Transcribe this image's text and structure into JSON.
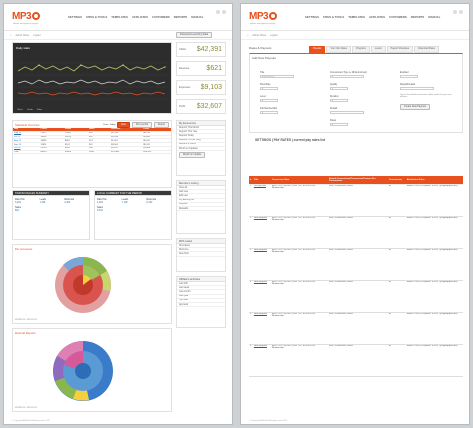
{
  "brand": {
    "logo": "MP3",
    "tagline": "affiliate management system",
    "accent": "#e8501d"
  },
  "nav": [
    "SETTINGS",
    "SITES & TOOLS",
    "TEMPLATES",
    "AFFILIATES",
    "CUSTOMERS",
    "REPORTS",
    "MANUAL"
  ],
  "subbar": [
    "Admin Home",
    "Logout"
  ],
  "left": {
    "page_title": "Admin Home",
    "account_btn": "Download Launching Data",
    "traffic_chart": {
      "title": "Daily stats",
      "legend": [
        "Clicks",
        "Leads",
        "Sales"
      ]
    },
    "stats": [
      {
        "label": "Clicks",
        "value": "$42,391"
      },
      {
        "label": "Revenue",
        "value": "$621"
      },
      {
        "label": "Expenses",
        "value": "$9,103"
      },
      {
        "label": "Profit",
        "value": "$32,607"
      }
    ],
    "overview": {
      "title": "Statistical Overview",
      "range": "From: Today",
      "btns": [
        "Run",
        "Prev period",
        "Export"
      ],
      "cols": [
        "Day",
        "Clicks",
        "Leads",
        "Sales",
        "Revenue",
        "Profit"
      ],
      "rows": [
        [
          "May 13",
          "21971",
          "17802",
          "601",
          "$2,310",
          "$6,120"
        ],
        [
          "Jul 13",
          "14011",
          "11413",
          "452",
          "$1,916",
          "$2,061"
        ],
        [
          "Aug 13",
          "14961",
          "8561",
          "373",
          "$1,421",
          "$5,011"
        ],
        [
          "Sep 13",
          "12811",
          "9107",
          "301",
          "$3,501",
          "$5,311"
        ],
        [
          "Oct 13",
          "22761",
          "4041",
          "299",
          "$2,417",
          "$1,009"
        ],
        [
          "Total",
          "86515",
          "50924",
          "2026",
          "$11,565",
          "$19,512"
        ]
      ]
    },
    "top_traffic": {
      "title": "TRAFFIC/SALES SUMMARY",
      "title2": "LOCAL SUMMARY FOR THE PERIOD",
      "cols": [
        "Raw Hits",
        "Leads",
        "Referrals",
        "Sales"
      ],
      "values": [
        "3,201",
        "1,201",
        "2,304",
        "821",
        "4,021",
        "7,102",
        "6,122",
        "9,311"
      ]
    },
    "pie1": {
      "title": "Per processor",
      "date": "08/28/2013 - 08/27/2013"
    },
    "pie2": {
      "title": "Referral Reports",
      "date": "08/28/2013 - 08/27/2013"
    },
    "side": {
      "econ_title": "My Economics",
      "econ": [
        "Reports This Month",
        "Reports This Year",
        "Reports Today",
        "Reports (1 Offer only)",
        "Reports $ Offers",
        "Month on Updates"
      ],
      "econ_btn": "Month on Update",
      "members_title": "Member's Listing",
      "members": [
        "View all",
        "Add new",
        "Edit user",
        "My Earning list",
        "Payouts",
        "Rewards"
      ],
      "news_title": "MP3 Latest",
      "news": [
        "Nuts latest",
        "Welcome",
        "New Post"
      ],
      "affiliates_title": "Affiliate's Activities",
      "affiliates": [
        "Last 24h",
        "Last week",
        "Last month",
        "Last year",
        "Top rank",
        "Approval"
      ]
    },
    "footer": "© Copyright AffiliateProManager.com 2013"
  },
  "right": {
    "tabs": [
      "Payouts",
      "Your Own Rates",
      "Programs",
      "Levels",
      "Payout Schedules",
      "Download Rates"
    ],
    "section_title": "Rates & Payouts",
    "form_title": "Add New Payouts",
    "fields": [
      {
        "label": "Title",
        "value": "Enter the title..."
      },
      {
        "label": "Conversions Type (+ Minimum/max)",
        "value": ""
      },
      {
        "label": "Enabled",
        "value": ""
      },
      {
        "label": "Pixel Rate",
        "value": "$ "
      },
      {
        "label": "Quality",
        "value": ""
      },
      {
        "label": "Dispatch/Label",
        "value": ""
      },
      {
        "label": "Level",
        "value": ""
      },
      {
        "label": "Duration",
        "value": ""
      },
      {
        "label": "Full Membership",
        "value": ""
      },
      {
        "label": "Default",
        "value": ""
      },
      {
        "label": "Flows",
        "value": ""
      }
    ],
    "note": "Use as the default commission and/or cookie for your new affiliates",
    "create_btn": "Create New Payouts",
    "list_title": "SETTINGS | PAY RATES | current pay rates list",
    "cols": [
      "#",
      "Title",
      "Conversion Rate",
      "Default Commission/Conversion/Custom Per Transactions",
      "Commission",
      "Attribution Rules"
    ],
    "items": [
      {
        "n": "1",
        "title": "Our pay rate",
        "rate": "First: 75% - $1,000 | Thru: 1% - $1,000 | Full Membership",
        "def": "First | Conversion: Raise",
        "com": "$1",
        "rule": "Month: 0.00% | Dispatch: 0.05% | (Daydropped rule)"
      },
      {
        "n": "2",
        "title": "New program",
        "rate": "First: 75% - $1,000 | Thru: 1% - $1,000 | Full Membership",
        "def": "First | Conversion: Raise",
        "com": "$1",
        "rule": "Month: 0.00% | Dispatch: 0.05% | (Daydropped rule)"
      },
      {
        "n": "3",
        "title": "New program",
        "rate": "First: 75% - $1,000 | Thru: 1% - $1,000 | Full Membership",
        "def": "First | Conversion: Raise",
        "com": "$1",
        "rule": "Month: 0.00% | Dispatch: 0.05% | (Daydropped rule)"
      },
      {
        "n": "4",
        "title": "New program",
        "rate": "First: 75% - $1,000 | Thru: 1% - $1,000 | Full Membership",
        "def": "First | Conversion: Raise",
        "com": "$1",
        "rule": "Month: 0.00% | Dispatch: 0.05% | (Daydropped rule)"
      },
      {
        "n": "5",
        "title": "New program",
        "rate": "First: 75% - $1,000 | Thru: 1% - $1,000 | Full Membership",
        "def": "First | Conversion: Raise",
        "com": "$1",
        "rule": "Month: 0.00% | Dispatch: 0.05% | (Daydropped rule)"
      },
      {
        "n": "6",
        "title": "New program",
        "rate": "First: 75% - $1,000 | Thru: 1% - $1,000 | Full Membership",
        "def": "First | Conversion: Raise",
        "com": "$1",
        "rule": "Month: 0.00% | Dispatch: 0.05% | (Daydropped rule)"
      }
    ],
    "footer": "© Copyright AffiliateProManager.com 2013"
  }
}
